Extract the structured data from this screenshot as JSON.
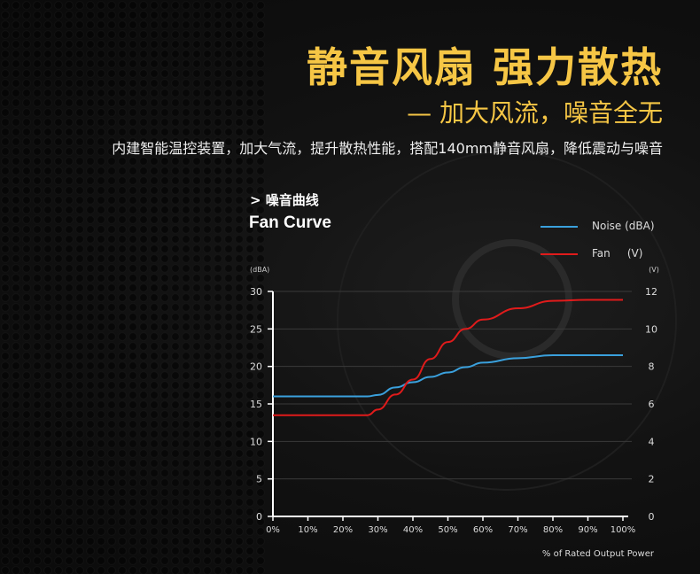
{
  "header": {
    "title": "静音风扇 强力散热",
    "subtitle": "— 加大风流，噪音全无",
    "description": "内建智能温控装置，加大气流，提升散热性能，搭配140mm静音风扇，降低震动与噪音"
  },
  "chart_data": {
    "type": "line",
    "title_cn": "> 噪音曲线",
    "title": "Fan Curve",
    "xlabel": "% of Rated Output Power",
    "ylabel": "(dBA)",
    "y2label": "(V)",
    "x": [
      0,
      10,
      20,
      27,
      30,
      35,
      40,
      45,
      50,
      55,
      60,
      70,
      80,
      90,
      100
    ],
    "xticks": [
      "0%",
      "10%",
      "20%",
      "30%",
      "40%",
      "50%",
      "60%",
      "70%",
      "80%",
      "90%",
      "100%"
    ],
    "ylim": [
      0,
      30
    ],
    "yticks": [
      "0",
      "5",
      "10",
      "15",
      "20",
      "25",
      "30"
    ],
    "y2lim": [
      0,
      12
    ],
    "y2ticks": [
      "0",
      "2",
      "4",
      "6",
      "8",
      "10",
      "12"
    ],
    "grid": true,
    "legend": "top-right",
    "series": [
      {
        "name": "Noise (dBA)",
        "axis": "left",
        "color": "#3aa0dc",
        "values": [
          16,
          16,
          16,
          16,
          16.2,
          17.2,
          17.9,
          18.6,
          19.2,
          19.9,
          20.5,
          21.1,
          21.5,
          21.5,
          21.5
        ]
      },
      {
        "name": "Fan     (V)",
        "axis": "right",
        "color": "#e01b1b",
        "values": [
          5.4,
          5.4,
          5.4,
          5.4,
          5.7,
          6.5,
          7.3,
          8.4,
          9.3,
          10.0,
          10.5,
          11.1,
          11.5,
          11.55,
          11.55
        ]
      }
    ]
  }
}
